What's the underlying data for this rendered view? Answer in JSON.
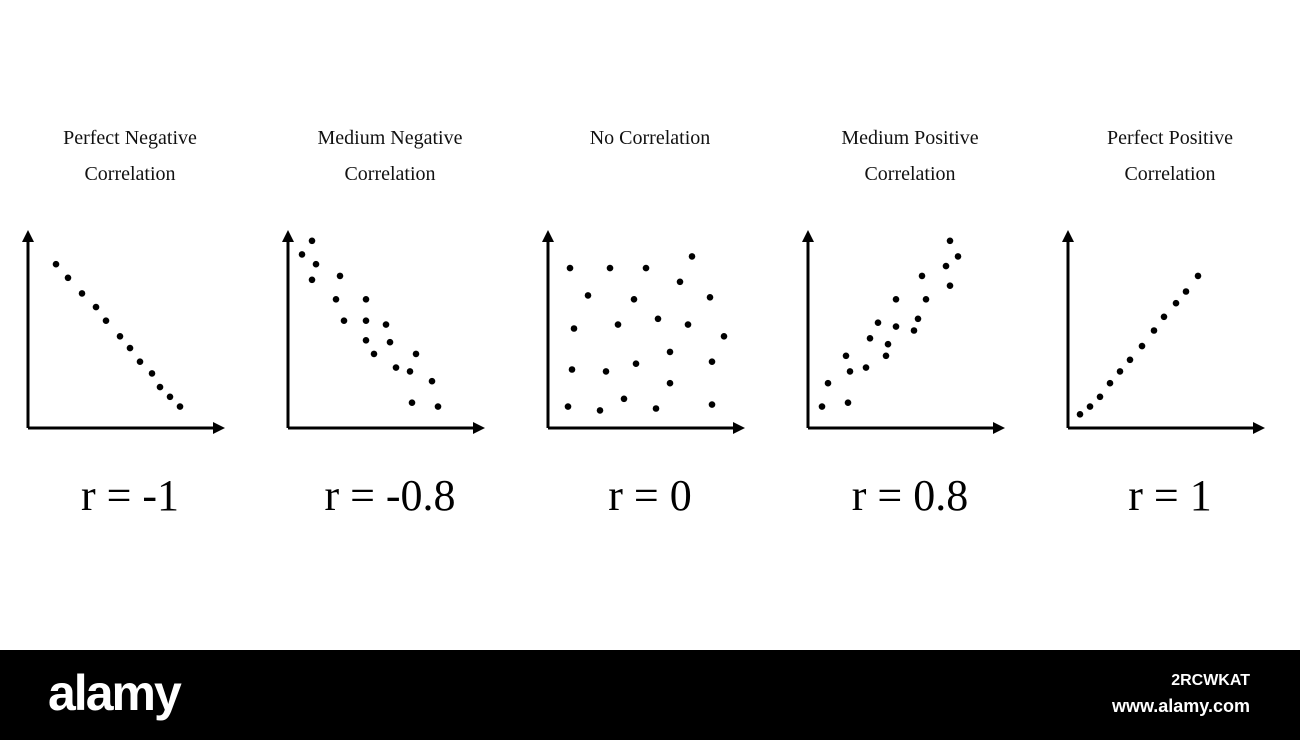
{
  "chart_data": [
    {
      "type": "scatter",
      "title_lines": [
        "Perfect Negative",
        "Correlation"
      ],
      "label": "r = -1",
      "xlim": [
        0,
        10
      ],
      "ylim": [
        0,
        10
      ],
      "grid": false,
      "points": [
        [
          1.4,
          8.4
        ],
        [
          2.0,
          7.7
        ],
        [
          2.7,
          6.9
        ],
        [
          3.4,
          6.2
        ],
        [
          3.9,
          5.5
        ],
        [
          4.6,
          4.7
        ],
        [
          5.1,
          4.1
        ],
        [
          5.6,
          3.4
        ],
        [
          6.2,
          2.8
        ],
        [
          6.6,
          2.1
        ],
        [
          7.1,
          1.6
        ],
        [
          7.6,
          1.1
        ]
      ]
    },
    {
      "type": "scatter",
      "title_lines": [
        "Medium Negative",
        "Correlation"
      ],
      "label": "r = -0.8",
      "xlim": [
        0,
        10
      ],
      "ylim": [
        0,
        10
      ],
      "grid": false,
      "points": [
        [
          1.2,
          9.6
        ],
        [
          0.7,
          8.9
        ],
        [
          1.4,
          8.4
        ],
        [
          1.2,
          7.6
        ],
        [
          2.6,
          7.8
        ],
        [
          2.4,
          6.6
        ],
        [
          2.8,
          5.5
        ],
        [
          3.9,
          6.6
        ],
        [
          3.9,
          5.5
        ],
        [
          4.9,
          5.3
        ],
        [
          3.9,
          4.5
        ],
        [
          4.3,
          3.8
        ],
        [
          5.1,
          4.4
        ],
        [
          5.4,
          3.1
        ],
        [
          6.4,
          3.8
        ],
        [
          6.1,
          2.9
        ],
        [
          7.2,
          2.4
        ],
        [
          6.2,
          1.3
        ],
        [
          7.5,
          1.1
        ]
      ]
    },
    {
      "type": "scatter",
      "title_lines": [
        "No Correlation"
      ],
      "label": "r = 0",
      "xlim": [
        0,
        10
      ],
      "ylim": [
        0,
        10
      ],
      "grid": false,
      "points": [
        [
          1.1,
          8.2
        ],
        [
          3.1,
          8.2
        ],
        [
          4.9,
          8.2
        ],
        [
          7.2,
          8.8
        ],
        [
          6.6,
          7.5
        ],
        [
          2.0,
          6.8
        ],
        [
          4.3,
          6.6
        ],
        [
          8.1,
          6.7
        ],
        [
          1.3,
          5.1
        ],
        [
          3.5,
          5.3
        ],
        [
          5.5,
          5.6
        ],
        [
          7.0,
          5.3
        ],
        [
          8.8,
          4.7
        ],
        [
          6.1,
          3.9
        ],
        [
          4.4,
          3.3
        ],
        [
          8.2,
          3.4
        ],
        [
          1.2,
          3.0
        ],
        [
          2.9,
          2.9
        ],
        [
          6.1,
          2.3
        ],
        [
          3.8,
          1.5
        ],
        [
          1.0,
          1.1
        ],
        [
          2.6,
          0.9
        ],
        [
          5.4,
          1.0
        ],
        [
          8.2,
          1.2
        ]
      ]
    },
    {
      "type": "scatter",
      "title_lines": [
        "Medium Positive",
        "Correlation"
      ],
      "label": "r = 0.8",
      "xlim": [
        0,
        10
      ],
      "ylim": [
        0,
        10
      ],
      "grid": false,
      "points": [
        [
          7.1,
          9.6
        ],
        [
          7.5,
          8.8
        ],
        [
          6.9,
          8.3
        ],
        [
          5.7,
          7.8
        ],
        [
          7.1,
          7.3
        ],
        [
          4.4,
          6.6
        ],
        [
          5.9,
          6.6
        ],
        [
          3.5,
          5.4
        ],
        [
          4.4,
          5.2
        ],
        [
          5.5,
          5.6
        ],
        [
          3.1,
          4.6
        ],
        [
          4.0,
          4.3
        ],
        [
          5.3,
          5.0
        ],
        [
          1.9,
          3.7
        ],
        [
          2.9,
          3.1
        ],
        [
          3.9,
          3.7
        ],
        [
          1.0,
          2.3
        ],
        [
          2.1,
          2.9
        ],
        [
          0.7,
          1.1
        ],
        [
          2.0,
          1.3
        ]
      ]
    },
    {
      "type": "scatter",
      "title_lines": [
        "Perfect Positive",
        "Correlation"
      ],
      "label": "r = 1",
      "xlim": [
        0,
        10
      ],
      "ylim": [
        0,
        10
      ],
      "grid": false,
      "points": [
        [
          0.6,
          0.7
        ],
        [
          1.1,
          1.1
        ],
        [
          1.6,
          1.6
        ],
        [
          2.1,
          2.3
        ],
        [
          2.6,
          2.9
        ],
        [
          3.1,
          3.5
        ],
        [
          3.7,
          4.2
        ],
        [
          4.3,
          5.0
        ],
        [
          4.8,
          5.7
        ],
        [
          5.4,
          6.4
        ],
        [
          5.9,
          7.0
        ],
        [
          6.5,
          7.8
        ]
      ]
    }
  ],
  "footer": {
    "brand": "alamy",
    "image_id": "2RCWKAT",
    "url": "www.alamy.com"
  }
}
